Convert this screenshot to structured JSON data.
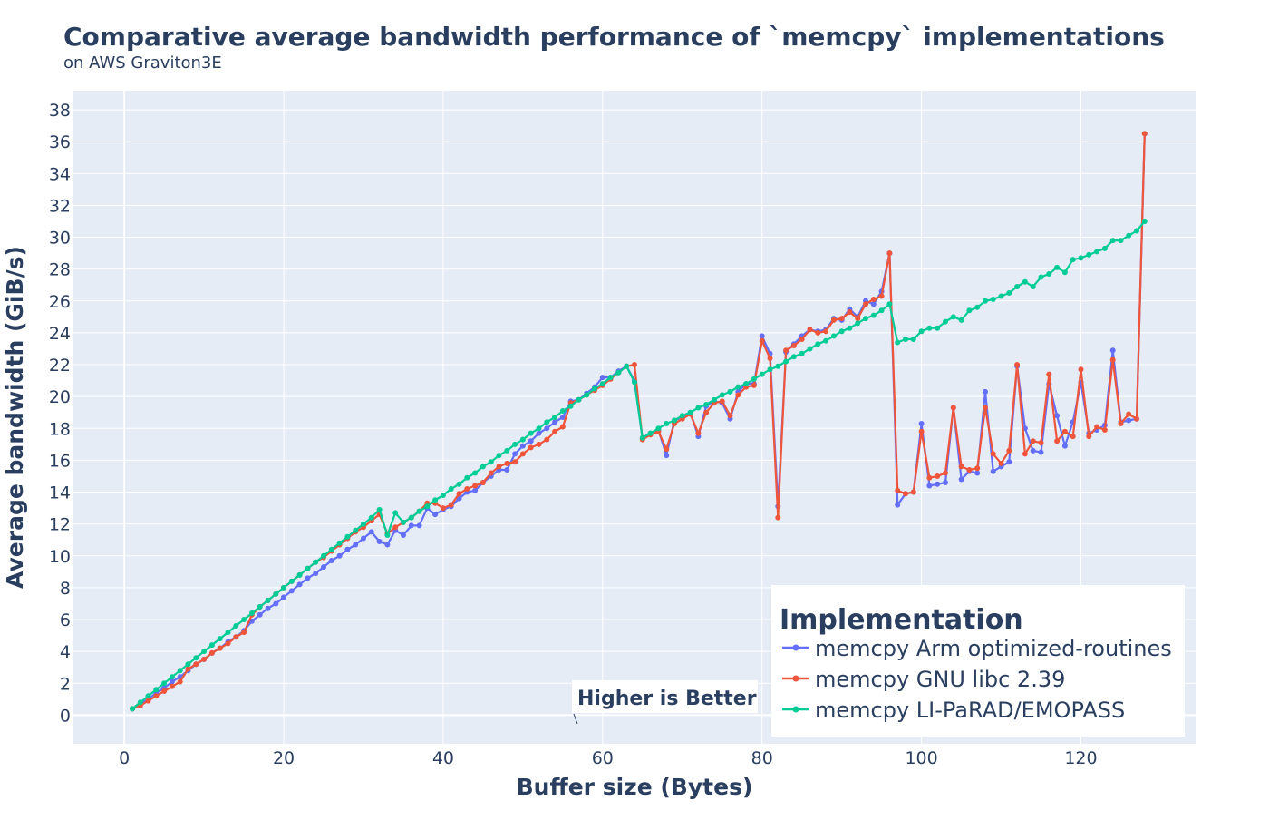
{
  "chart_data": {
    "type": "line",
    "title": "Comparative average bandwidth performance of `memcpy` implementations",
    "subtitle": "on AWS Graviton3E",
    "xlabel": "Buffer size (Bytes)",
    "ylabel": "Average bandwidth (GiB/s)",
    "xlim": [
      -6.5,
      134.5
    ],
    "ylim": [
      -1.8,
      39.2
    ],
    "x_ticks": [
      "0",
      "20",
      "40",
      "60",
      "80",
      "100",
      "120"
    ],
    "y_ticks": [
      "0",
      "2",
      "4",
      "6",
      "8",
      "10",
      "12",
      "14",
      "16",
      "18",
      "20",
      "22",
      "24",
      "26",
      "28",
      "30",
      "32",
      "34",
      "36",
      "38"
    ],
    "grid": true,
    "legend": {
      "title": "Implementation",
      "position": "bottom-right"
    },
    "annotation": {
      "text": "Higher is Better",
      "x": 57.5,
      "y": 0
    },
    "series": [
      {
        "name": "memcpy Arm optimized-routines",
        "color": "#636efa",
        "x": [
          1,
          2,
          3,
          4,
          5,
          6,
          7,
          8,
          9,
          10,
          11,
          12,
          13,
          14,
          15,
          16,
          17,
          18,
          19,
          20,
          21,
          22,
          23,
          24,
          25,
          26,
          27,
          28,
          29,
          30,
          31,
          32,
          33,
          34,
          35,
          36,
          37,
          38,
          39,
          40,
          41,
          42,
          43,
          44,
          45,
          46,
          47,
          48,
          49,
          50,
          51,
          52,
          53,
          54,
          55,
          56,
          57,
          58,
          59,
          60,
          61,
          62,
          63,
          64,
          65,
          66,
          67,
          68,
          69,
          70,
          71,
          72,
          73,
          74,
          75,
          76,
          77,
          78,
          79,
          80,
          81,
          82,
          83,
          84,
          85,
          86,
          87,
          88,
          89,
          90,
          91,
          92,
          93,
          94,
          95,
          96,
          97,
          98,
          99,
          100,
          101,
          102,
          103,
          104,
          105,
          106,
          107,
          108,
          109,
          110,
          111,
          112,
          113,
          114,
          115,
          116,
          117,
          118,
          119,
          120,
          121,
          122,
          123,
          124,
          125,
          126,
          127,
          128
        ],
        "y": [
          0.4,
          0.7,
          1.0,
          1.4,
          1.7,
          2.1,
          2.4,
          2.8,
          3.2,
          3.5,
          3.9,
          4.2,
          4.6,
          4.9,
          5.3,
          5.9,
          6.3,
          6.7,
          7.0,
          7.4,
          7.8,
          8.2,
          8.6,
          8.9,
          9.3,
          9.7,
          10.0,
          10.4,
          10.7,
          11.1,
          11.5,
          10.9,
          10.7,
          11.6,
          11.3,
          11.9,
          11.9,
          13.0,
          12.6,
          12.9,
          13.1,
          13.6,
          14.0,
          14.1,
          14.6,
          15.0,
          15.4,
          15.4,
          16.4,
          16.9,
          17.2,
          17.7,
          18.0,
          18.4,
          18.7,
          19.7,
          19.8,
          20.2,
          20.6,
          21.2,
          21.2,
          21.6,
          21.9,
          21.0,
          17.4,
          17.7,
          17.9,
          16.3,
          18.5,
          18.7,
          19.0,
          17.5,
          19.4,
          19.7,
          19.6,
          18.6,
          20.3,
          20.8,
          20.8,
          23.8,
          22.7,
          13.1,
          22.8,
          23.3,
          23.8,
          24.2,
          24.1,
          24.2,
          24.9,
          24.8,
          25.5,
          25.0,
          26.0,
          25.8,
          26.6,
          29.0,
          13.2,
          13.9,
          14.0,
          18.3,
          14.4,
          14.5,
          14.6,
          19.3,
          14.8,
          15.3,
          15.2,
          20.3,
          15.3,
          15.6,
          15.9,
          21.9,
          18.0,
          16.6,
          16.5,
          20.8,
          18.8,
          16.9,
          18.4,
          20.9,
          17.7,
          17.9,
          18.2,
          22.9,
          18.4,
          18.5,
          18.6,
          36.5
        ]
      },
      {
        "name": "memcpy GNU libc 2.39",
        "color": "#ef553b",
        "x": [
          1,
          2,
          3,
          4,
          5,
          6,
          7,
          8,
          9,
          10,
          11,
          12,
          13,
          14,
          15,
          16,
          17,
          18,
          19,
          20,
          21,
          22,
          23,
          24,
          25,
          26,
          27,
          28,
          29,
          30,
          31,
          32,
          33,
          34,
          35,
          36,
          37,
          38,
          39,
          40,
          41,
          42,
          43,
          44,
          45,
          46,
          47,
          48,
          49,
          50,
          51,
          52,
          53,
          54,
          55,
          56,
          57,
          58,
          59,
          60,
          61,
          62,
          63,
          64,
          65,
          66,
          67,
          68,
          69,
          70,
          71,
          72,
          73,
          74,
          75,
          76,
          77,
          78,
          79,
          80,
          81,
          82,
          83,
          84,
          85,
          86,
          87,
          88,
          89,
          90,
          91,
          92,
          93,
          94,
          95,
          96,
          97,
          98,
          99,
          100,
          101,
          102,
          103,
          104,
          105,
          106,
          107,
          108,
          109,
          110,
          111,
          112,
          113,
          114,
          115,
          116,
          117,
          118,
          119,
          120,
          121,
          122,
          123,
          124,
          125,
          126,
          127,
          128
        ],
        "y": [
          0.4,
          0.6,
          0.9,
          1.2,
          1.5,
          1.8,
          2.1,
          2.9,
          3.2,
          3.5,
          3.9,
          4.2,
          4.5,
          4.9,
          5.2,
          6.3,
          6.8,
          7.2,
          7.6,
          8.0,
          8.4,
          8.8,
          9.2,
          9.6,
          9.9,
          10.3,
          10.7,
          11.1,
          11.5,
          11.8,
          12.2,
          12.6,
          11.4,
          11.8,
          12.1,
          12.4,
          12.8,
          13.3,
          13.3,
          13.0,
          13.2,
          13.9,
          14.2,
          14.4,
          14.6,
          15.2,
          15.6,
          15.8,
          15.9,
          16.4,
          16.8,
          17.0,
          17.3,
          17.8,
          18.1,
          19.6,
          19.8,
          20.1,
          20.4,
          20.7,
          21.1,
          21.5,
          21.9,
          22.0,
          17.3,
          17.6,
          17.8,
          16.7,
          18.3,
          18.6,
          18.9,
          17.7,
          19.0,
          19.6,
          19.7,
          18.8,
          20.1,
          20.6,
          20.7,
          23.5,
          22.4,
          12.4,
          22.9,
          23.2,
          23.6,
          24.2,
          24.0,
          24.1,
          24.8,
          24.9,
          25.3,
          24.9,
          25.8,
          26.1,
          26.3,
          29.0,
          14.1,
          13.9,
          14.0,
          17.8,
          14.9,
          15.0,
          15.2,
          19.3,
          15.6,
          15.4,
          15.5,
          19.3,
          16.4,
          15.8,
          16.6,
          22.0,
          16.4,
          17.2,
          17.1,
          21.4,
          17.2,
          17.8,
          17.5,
          21.7,
          17.5,
          18.1,
          17.9,
          22.3,
          18.3,
          18.9,
          18.6,
          36.5
        ]
      },
      {
        "name": "memcpy LI-PaRAD/EMOPASS",
        "color": "#00cc96",
        "x": [
          1,
          2,
          3,
          4,
          5,
          6,
          7,
          8,
          9,
          10,
          11,
          12,
          13,
          14,
          15,
          16,
          17,
          18,
          19,
          20,
          21,
          22,
          23,
          24,
          25,
          26,
          27,
          28,
          29,
          30,
          31,
          32,
          33,
          34,
          35,
          36,
          37,
          38,
          39,
          40,
          41,
          42,
          43,
          44,
          45,
          46,
          47,
          48,
          49,
          50,
          51,
          52,
          53,
          54,
          55,
          56,
          57,
          58,
          59,
          60,
          61,
          62,
          63,
          64,
          65,
          66,
          67,
          68,
          69,
          70,
          71,
          72,
          73,
          74,
          75,
          76,
          77,
          78,
          79,
          80,
          81,
          82,
          83,
          84,
          85,
          86,
          87,
          88,
          89,
          90,
          91,
          92,
          93,
          94,
          95,
          96,
          97,
          98,
          99,
          100,
          101,
          102,
          103,
          104,
          105,
          106,
          107,
          108,
          109,
          110,
          111,
          112,
          113,
          114,
          115,
          116,
          117,
          118,
          119,
          120,
          121,
          122,
          123,
          124,
          125,
          126,
          127,
          128
        ],
        "y": [
          0.4,
          0.8,
          1.2,
          1.6,
          2.0,
          2.4,
          2.8,
          3.2,
          3.6,
          4.0,
          4.4,
          4.8,
          5.2,
          5.6,
          6.0,
          6.4,
          6.8,
          7.2,
          7.6,
          8.0,
          8.4,
          8.8,
          9.2,
          9.6,
          10.0,
          10.4,
          10.8,
          11.2,
          11.6,
          12.0,
          12.4,
          12.9,
          11.3,
          12.7,
          12.1,
          12.4,
          12.8,
          13.1,
          13.5,
          13.8,
          14.2,
          14.5,
          14.9,
          15.2,
          15.6,
          15.9,
          16.3,
          16.6,
          17.0,
          17.3,
          17.7,
          18.0,
          18.4,
          18.7,
          19.1,
          19.4,
          19.8,
          20.1,
          20.5,
          20.8,
          21.2,
          21.5,
          21.9,
          20.9,
          17.4,
          17.7,
          18.0,
          18.3,
          18.5,
          18.8,
          19.0,
          19.3,
          19.5,
          19.8,
          20.1,
          20.3,
          20.6,
          20.8,
          21.1,
          21.4,
          21.7,
          21.9,
          22.2,
          22.5,
          22.7,
          23.0,
          23.3,
          23.5,
          23.8,
          24.1,
          24.3,
          24.6,
          24.9,
          25.1,
          25.4,
          25.8,
          23.4,
          23.6,
          23.6,
          24.1,
          24.3,
          24.3,
          24.7,
          25.0,
          24.8,
          25.4,
          25.6,
          26.0,
          26.1,
          26.3,
          26.5,
          26.9,
          27.2,
          26.9,
          27.5,
          27.7,
          28.1,
          27.8,
          28.6,
          28.7,
          28.9,
          29.1,
          29.3,
          29.8,
          29.8,
          30.1,
          30.4,
          31.0
        ]
      }
    ]
  }
}
